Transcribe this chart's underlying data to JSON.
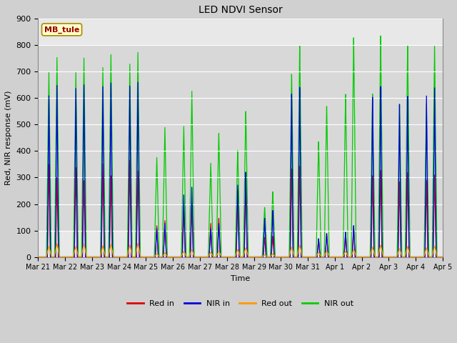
{
  "title": "LED NDVI Sensor",
  "xlabel": "Time",
  "ylabel": "Red, NIR response (mV)",
  "ylim": [
    0,
    900
  ],
  "yticks": [
    0,
    100,
    200,
    300,
    400,
    500,
    600,
    700,
    800,
    900
  ],
  "label_text": "MB_tule",
  "tick_labels": [
    "Mar 21",
    "Mar 22",
    "Mar 23",
    "Mar 24",
    "Mar 25",
    "Mar 26",
    "Mar 27",
    "Mar 28",
    "Mar 29",
    "Mar 30",
    "Mar 31",
    "Apr 1",
    "Apr 2",
    "Apr 3",
    "Apr 4",
    "Apr 5"
  ],
  "colors": {
    "red_in": "#dd0000",
    "nir_in": "#0000dd",
    "red_out": "#ff9900",
    "nir_out": "#00cc00"
  },
  "legend_labels": [
    "Red in",
    "NIR in",
    "Red out",
    "NIR out"
  ],
  "fig_bg": "#d0d0d0",
  "plot_bg": "#e8e8e8",
  "shaded_bg": "#d8d8d8",
  "grid_color": "#ffffff",
  "peak_times": [
    0.4,
    0.7,
    1.4,
    1.7,
    2.4,
    2.7,
    3.4,
    3.7,
    4.4,
    4.7,
    5.4,
    5.7,
    6.4,
    6.7,
    7.4,
    7.7,
    8.4,
    8.7,
    9.4,
    9.7,
    10.4,
    10.7,
    11.4,
    11.7,
    12.4,
    12.7,
    13.4,
    13.7,
    14.4,
    14.7
  ],
  "red_in_peaks": [
    350,
    300,
    340,
    290,
    355,
    310,
    370,
    330,
    120,
    140,
    180,
    200,
    130,
    150,
    260,
    300,
    75,
    80,
    340,
    350,
    70,
    90,
    90,
    110,
    310,
    330,
    285,
    320,
    290,
    310
  ],
  "nir_in_peaks": [
    610,
    650,
    640,
    655,
    650,
    665,
    655,
    670,
    110,
    130,
    240,
    270,
    110,
    130,
    280,
    330,
    150,
    180,
    630,
    655,
    70,
    90,
    95,
    120,
    610,
    650,
    580,
    610,
    610,
    640
  ],
  "red_out_peaks": [
    40,
    50,
    40,
    50,
    42,
    48,
    45,
    52,
    12,
    15,
    22,
    28,
    18,
    22,
    28,
    35,
    8,
    12,
    38,
    45,
    18,
    22,
    22,
    28,
    38,
    45,
    32,
    40,
    35,
    42
  ],
  "nir_out_peaks": [
    700,
    755,
    700,
    755,
    720,
    770,
    735,
    780,
    380,
    495,
    500,
    635,
    360,
    475,
    410,
    560,
    190,
    250,
    700,
    810,
    440,
    575,
    620,
    835,
    620,
    840,
    580,
    800,
    580,
    800
  ]
}
